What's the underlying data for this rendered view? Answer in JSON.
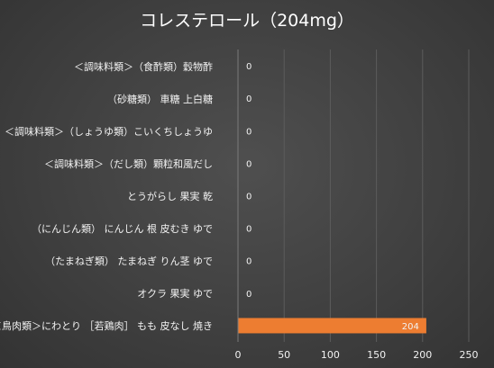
{
  "title": "コレステロール（204mg）",
  "chart_data": {
    "type": "bar",
    "orientation": "horizontal",
    "title": "コレステロール（204mg）",
    "categories": [
      "＜調味料類＞（食酢類）穀物酢",
      "（砂糖類） 車糖 上白糖",
      "＜調味料類＞（しょうゆ類）こいくちしょうゆ",
      "＜調味料類＞（だし類）顆粒和風だし",
      "とうがらし 果実 乾",
      "（にんじん類） にんじん 根 皮むき ゆで",
      "（たまねぎ類） たまねぎ りん茎 ゆで",
      "オクラ 果実 ゆで",
      "＜鳥肉類＞にわとり ［若鶏肉］ もも 皮なし 焼き"
    ],
    "values": [
      0,
      0,
      0,
      0,
      0,
      0,
      0,
      0,
      204
    ],
    "data_labels": [
      "0",
      "0",
      "0",
      "0",
      "0",
      "0",
      "0",
      "0",
      "204"
    ],
    "xlim": [
      0,
      250
    ],
    "ticks": [
      "0",
      "50",
      "100",
      "150",
      "200",
      "250"
    ],
    "grid": true,
    "bar_color": "#ed7d31",
    "legend": "none"
  }
}
